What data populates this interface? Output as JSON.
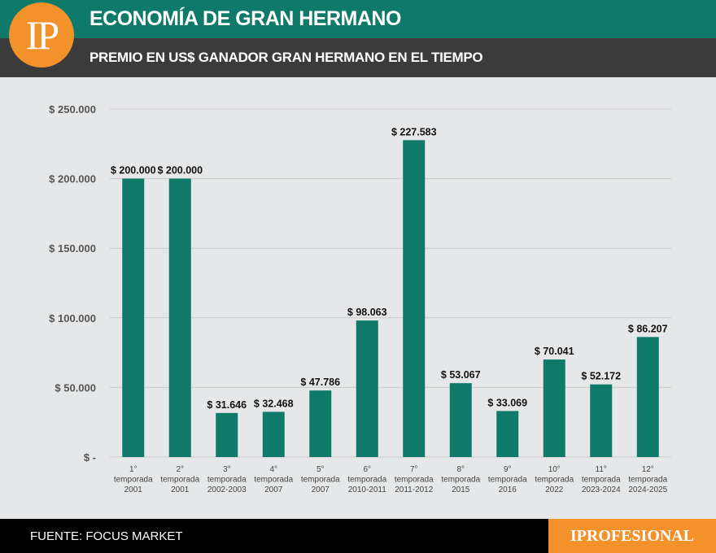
{
  "header": {
    "logo_text": "IP",
    "title": "ECONOMÍA DE GRAN HERMANO",
    "subtitle": "PREMIO EN US$ GANADOR GRAN HERMANO EN EL TIEMPO"
  },
  "footer": {
    "source": "FUENTE: FOCUS MARKET",
    "brand": "IPROFESIONAL"
  },
  "colors": {
    "bar": "#0f7a6a",
    "header": "#0f7a6a",
    "subheader": "#3b3b3b",
    "accent": "#f3922b",
    "background": "#e6e7e8"
  },
  "chart_data": {
    "type": "bar",
    "title": "PREMIO EN US$ GANADOR GRAN HERMANO EN EL TIEMPO",
    "categories": [
      [
        "1°",
        "temporada",
        "2001"
      ],
      [
        "2°",
        "temporada",
        "2001"
      ],
      [
        "3°",
        "temporada",
        "2002-2003"
      ],
      [
        "4°",
        "temporada",
        "2007"
      ],
      [
        "5°",
        "temporada",
        "2007"
      ],
      [
        "6°",
        "temporada",
        "2010-2011"
      ],
      [
        "7°",
        "temporada",
        "2011-2012"
      ],
      [
        "8°",
        "temporada",
        "2015"
      ],
      [
        "9°",
        "temporada",
        "2016"
      ],
      [
        "10°",
        "temporada",
        "2022"
      ],
      [
        "11°",
        "temporada",
        "2023-2024"
      ],
      [
        "12°",
        "temporada",
        "2024-2025"
      ]
    ],
    "values": [
      200000,
      200000,
      31646,
      32468,
      47786,
      98063,
      227583,
      53067,
      33069,
      70041,
      52172,
      86207
    ],
    "data_labels": [
      "$ 200.000",
      "$ 200.000",
      "$ 31.646",
      "$ 32.468",
      "$ 47.786",
      "$ 98.063",
      "$ 227.583",
      "$ 53.067",
      "$ 33.069",
      "$ 70.041",
      "$ 52.172",
      "$ 86.207"
    ],
    "y_ticks": [
      0,
      50000,
      100000,
      150000,
      200000,
      250000
    ],
    "y_tick_labels": [
      "$ -",
      "$ 50.000",
      "$ 100.000",
      "$ 150.000",
      "$ 200.000",
      "$ 250.000"
    ],
    "ylim": [
      0,
      250000
    ],
    "grid": true,
    "legend": "none"
  }
}
